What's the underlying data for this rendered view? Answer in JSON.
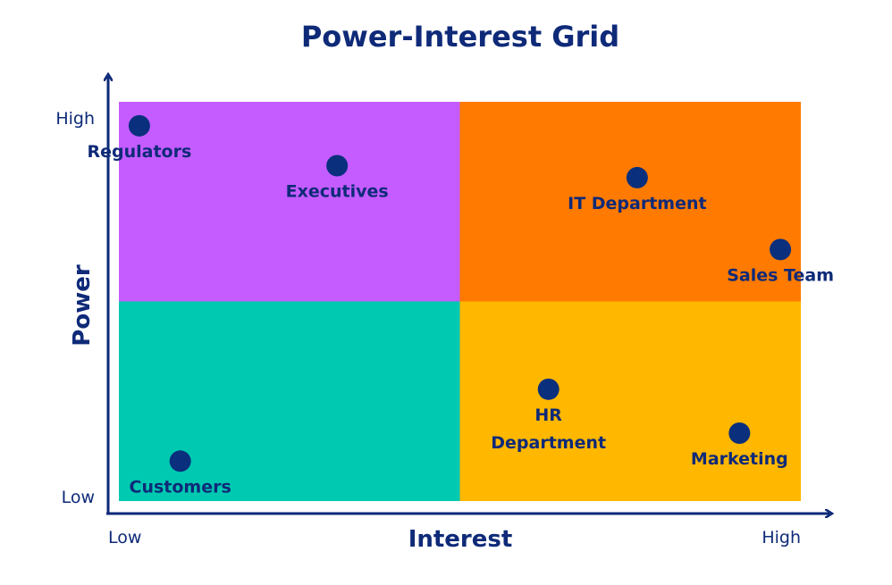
{
  "title": "Power-Interest Grid",
  "chart_data": {
    "type": "scatter",
    "x_axis": {
      "title": "Interest",
      "low_label": "Low",
      "high_label": "High",
      "range": [
        0,
        1
      ]
    },
    "y_axis": {
      "title": "Power",
      "low_label": "Low",
      "high_label": "High",
      "range": [
        0,
        1
      ]
    },
    "quadrant_colors": {
      "top_left": "#c45cff",
      "top_right": "#ff7a00",
      "bottom_left": "#00c9b1",
      "bottom_right": "#ffb700"
    },
    "axis_color": "#0e2a78",
    "point_color": "#0a2f7d",
    "points": [
      {
        "label_lines": [
          "Regulators"
        ],
        "x": 0.03,
        "y": 0.94
      },
      {
        "label_lines": [
          "Executives"
        ],
        "x": 0.32,
        "y": 0.84
      },
      {
        "label_lines": [
          "IT Department"
        ],
        "x": 0.76,
        "y": 0.81
      },
      {
        "label_lines": [
          "Sales Team"
        ],
        "x": 0.97,
        "y": 0.63
      },
      {
        "label_lines": [
          "HR",
          "Department"
        ],
        "x": 0.63,
        "y": 0.28
      },
      {
        "label_lines": [
          "Marketing"
        ],
        "x": 0.91,
        "y": 0.17
      },
      {
        "label_lines": [
          "Customers"
        ],
        "x": 0.09,
        "y": 0.1
      }
    ]
  }
}
